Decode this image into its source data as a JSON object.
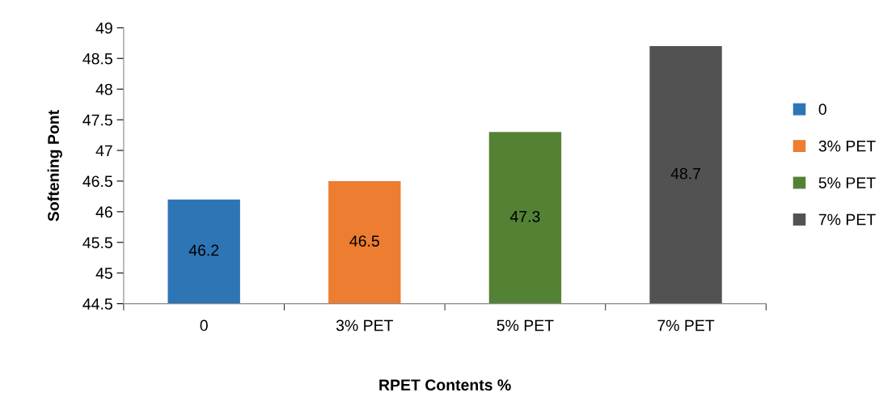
{
  "chart_data": {
    "type": "bar",
    "xlabel": "RPET Contents %",
    "ylabel": "Softening Pont",
    "categories": [
      "0",
      "3% PET",
      "5% PET",
      "7% PET"
    ],
    "series": [
      {
        "name": "0",
        "color": "#2e75b6",
        "values": [
          46.2,
          null,
          null,
          null
        ]
      },
      {
        "name": "3% PET",
        "color": "#ed7d31",
        "values": [
          null,
          46.5,
          null,
          null
        ]
      },
      {
        "name": "5% PET",
        "color": "#548235",
        "values": [
          null,
          null,
          47.3,
          null
        ]
      },
      {
        "name": "7% PET",
        "color": "#525252",
        "values": [
          null,
          null,
          null,
          48.7
        ]
      }
    ],
    "ylim": [
      44.5,
      49
    ],
    "yticks": [
      44.5,
      45,
      45.5,
      46,
      46.5,
      47,
      47.5,
      48,
      48.5,
      49
    ],
    "data_labels": true,
    "grid": false,
    "legend": "right"
  }
}
